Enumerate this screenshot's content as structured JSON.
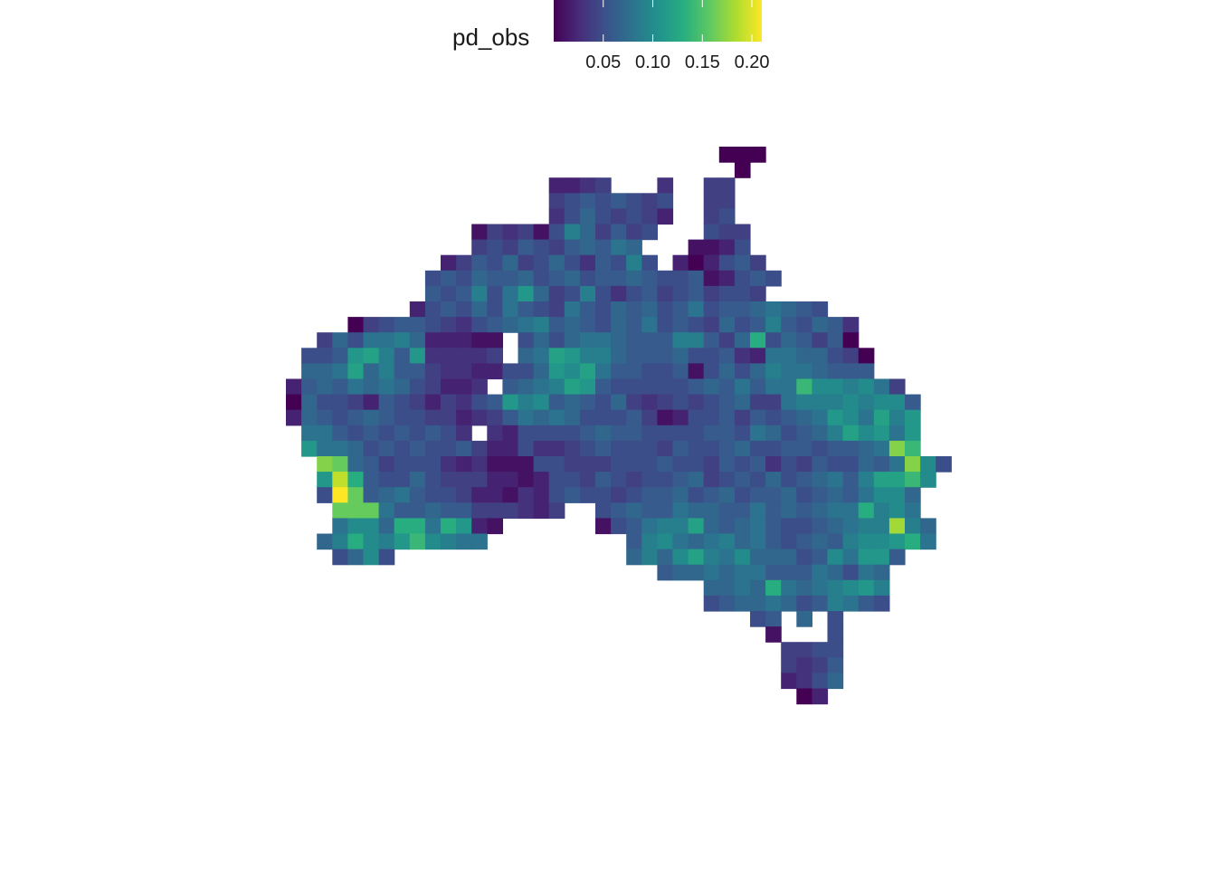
{
  "chart_data": {
    "type": "heatmap",
    "title": "",
    "xlabel": "",
    "ylabel": "",
    "legend": {
      "title": "pd_obs",
      "position": "top",
      "colormap": "viridis",
      "range": [
        0.0,
        0.21
      ],
      "ticks": [
        {
          "value": 0.05,
          "label": "0.05"
        },
        {
          "value": 0.1,
          "label": "0.10"
        },
        {
          "value": 0.15,
          "label": "0.15"
        },
        {
          "value": 0.2,
          "label": "0.20"
        }
      ]
    },
    "grid": {
      "columns": 42,
      "rows": 44,
      "description": "values listed row by row from top (north) to bottom (south); each row gives starting column and the pd_obs values of consecutive cells, null = empty"
    },
    "cells": [
      {
        "row": 0,
        "col": 28,
        "values": [
          0.0,
          0.0,
          0.0
        ]
      },
      {
        "row": 1,
        "col": 29,
        "values": [
          0.0
        ]
      },
      {
        "row": 2,
        "col": 17,
        "values": [
          0.02,
          0.02,
          0.03,
          0.04,
          null,
          null,
          null,
          0.03,
          null,
          null,
          0.04,
          0.04
        ]
      },
      {
        "row": 3,
        "col": 17,
        "values": [
          0.04,
          0.05,
          0.06,
          0.05,
          0.06,
          0.05,
          0.04,
          0.05,
          null,
          null,
          0.04,
          0.04
        ]
      },
      {
        "row": 4,
        "col": 17,
        "values": [
          0.03,
          0.05,
          0.07,
          0.05,
          0.04,
          0.05,
          0.04,
          0.02,
          null,
          null,
          0.04,
          0.05
        ]
      },
      {
        "row": 5,
        "col": 12,
        "values": [
          0.01,
          0.04,
          0.03,
          0.04,
          0.01,
          0.05,
          0.09,
          0.07,
          0.04,
          0.06,
          0.04,
          0.05,
          null,
          null,
          null,
          0.05,
          0.04,
          0.04
        ]
      },
      {
        "row": 6,
        "col": 12,
        "values": [
          0.04,
          0.05,
          0.04,
          0.06,
          0.05,
          0.04,
          0.06,
          0.07,
          0.06,
          0.08,
          0.07,
          null,
          null,
          null,
          0.01,
          0.01,
          0.02,
          0.05
        ]
      },
      {
        "row": 7,
        "col": 10,
        "values": [
          0.02,
          0.04,
          0.06,
          0.05,
          0.07,
          0.04,
          0.05,
          0.07,
          0.05,
          0.03,
          0.06,
          0.05,
          0.09,
          0.05,
          null,
          0.02,
          0.0,
          0.02,
          0.05,
          0.06,
          0.04
        ]
      },
      {
        "row": 8,
        "col": 9,
        "values": [
          0.05,
          0.06,
          0.05,
          0.07,
          0.06,
          0.06,
          0.07,
          0.05,
          0.06,
          0.07,
          0.05,
          0.06,
          0.06,
          0.07,
          0.06,
          0.05,
          0.05,
          0.06,
          0.01,
          0.02,
          0.05,
          0.06,
          0.05
        ]
      },
      {
        "row": 9,
        "col": 9,
        "values": [
          0.06,
          0.05,
          0.06,
          0.09,
          0.05,
          0.08,
          0.11,
          0.07,
          0.04,
          0.05,
          0.09,
          0.05,
          0.03,
          0.05,
          0.06,
          0.04,
          0.05,
          0.06,
          0.04,
          0.05,
          0.05,
          0.04
        ]
      },
      {
        "row": 10,
        "col": 8,
        "values": [
          0.02,
          0.05,
          0.06,
          0.05,
          0.07,
          0.05,
          0.08,
          0.06,
          0.05,
          0.04,
          0.08,
          0.06,
          0.05,
          0.07,
          0.06,
          0.07,
          0.05,
          0.06,
          0.08,
          0.05,
          0.06,
          0.06,
          0.07,
          0.08,
          0.07,
          0.06,
          0.05
        ]
      },
      {
        "row": 11,
        "col": 4,
        "values": [
          0.0,
          0.04,
          0.05,
          0.06,
          0.06,
          0.05,
          0.04,
          0.03,
          0.05,
          0.06,
          0.07,
          0.08,
          0.09,
          0.06,
          0.07,
          0.06,
          0.05,
          0.07,
          0.06,
          0.08,
          0.05,
          0.06,
          0.05,
          0.04,
          0.07,
          0.05,
          0.06,
          0.09,
          0.06,
          0.05,
          0.07,
          0.06,
          0.03
        ]
      },
      {
        "row": 12,
        "col": 2,
        "values": [
          0.04,
          0.07,
          0.05,
          0.08,
          0.08,
          0.09,
          0.07,
          0.02,
          0.02,
          0.02,
          0.01,
          0.01,
          null,
          0.05,
          0.07,
          0.05,
          0.07,
          0.08,
          0.08,
          0.07,
          0.06,
          0.06,
          0.06,
          0.09,
          0.09,
          0.06,
          0.04,
          0.07,
          0.13,
          0.05,
          0.07,
          0.06,
          0.04,
          0.06,
          0.0
        ]
      },
      {
        "row": 13,
        "col": 1,
        "values": [
          0.05,
          0.05,
          0.06,
          0.11,
          0.12,
          0.09,
          0.06,
          0.11,
          0.03,
          0.03,
          0.03,
          0.03,
          0.04,
          null,
          0.07,
          0.08,
          0.12,
          0.11,
          0.09,
          0.09,
          0.07,
          0.06,
          0.06,
          0.06,
          0.07,
          0.05,
          0.05,
          0.06,
          0.03,
          0.02,
          0.08,
          0.08,
          0.07,
          0.07,
          0.05,
          0.04,
          0.0
        ]
      },
      {
        "row": 14,
        "col": 1,
        "values": [
          0.07,
          0.07,
          0.08,
          0.12,
          0.07,
          0.09,
          0.06,
          0.06,
          0.04,
          0.03,
          0.03,
          0.02,
          0.02,
          0.05,
          0.05,
          0.07,
          0.11,
          0.1,
          0.12,
          0.08,
          0.06,
          0.06,
          0.05,
          0.05,
          0.06,
          0.01,
          0.05,
          0.07,
          0.05,
          0.07,
          0.09,
          0.08,
          0.08,
          0.07,
          0.06,
          0.06,
          0.06
        ]
      },
      {
        "row": 15,
        "col": 0,
        "values": [
          0.02,
          0.06,
          0.07,
          0.06,
          0.08,
          0.07,
          0.08,
          0.07,
          0.05,
          0.04,
          0.02,
          0.02,
          0.03,
          null,
          0.06,
          0.07,
          0.08,
          0.09,
          0.12,
          0.11,
          0.06,
          0.05,
          0.05,
          0.05,
          0.05,
          0.05,
          0.06,
          0.07,
          0.06,
          0.08,
          0.06,
          0.08,
          0.08,
          0.14,
          0.1,
          0.1,
          0.09,
          0.1,
          0.08,
          0.04
        ]
      },
      {
        "row": 16,
        "col": 0,
        "values": [
          0.0,
          0.07,
          0.05,
          0.05,
          0.04,
          0.02,
          0.06,
          0.05,
          0.04,
          0.02,
          0.04,
          0.03,
          0.05,
          0.06,
          0.11,
          0.09,
          0.1,
          0.06,
          0.07,
          0.06,
          0.05,
          0.07,
          0.04,
          0.03,
          0.04,
          0.05,
          0.04,
          0.05,
          0.06,
          0.07,
          0.04,
          0.04,
          0.08,
          0.09,
          0.09,
          0.09,
          0.1,
          0.09,
          0.1,
          0.1,
          0.06
        ]
      },
      {
        "row": 17,
        "col": 0,
        "values": [
          0.02,
          0.07,
          0.06,
          0.05,
          0.06,
          0.07,
          0.06,
          0.05,
          0.05,
          0.04,
          0.04,
          0.02,
          0.03,
          0.04,
          0.06,
          0.08,
          0.07,
          0.08,
          0.07,
          0.05,
          0.05,
          0.05,
          0.06,
          0.04,
          0.01,
          0.02,
          0.05,
          0.05,
          0.06,
          0.04,
          0.06,
          0.05,
          0.06,
          0.07,
          0.08,
          0.11,
          0.1,
          0.08,
          0.12,
          0.09,
          0.11
        ]
      },
      {
        "row": 18,
        "col": 1,
        "values": [
          0.08,
          0.08,
          0.06,
          0.05,
          0.06,
          0.05,
          0.06,
          0.05,
          0.06,
          0.05,
          0.03,
          null,
          0.03,
          0.02,
          0.05,
          0.05,
          0.05,
          0.05,
          0.06,
          0.07,
          0.06,
          0.06,
          0.05,
          0.05,
          0.05,
          0.05,
          0.06,
          0.06,
          0.05,
          0.08,
          0.07,
          0.05,
          0.06,
          0.07,
          0.09,
          0.12,
          0.1,
          0.11,
          0.08,
          0.11
        ]
      },
      {
        "row": 19,
        "col": 1,
        "values": [
          0.11,
          0.08,
          0.08,
          0.07,
          0.05,
          0.06,
          0.05,
          0.06,
          0.05,
          0.05,
          0.06,
          0.04,
          0.02,
          0.02,
          0.05,
          0.03,
          0.03,
          0.04,
          0.05,
          0.06,
          0.05,
          0.05,
          0.05,
          0.04,
          0.06,
          0.05,
          0.05,
          0.06,
          0.07,
          0.05,
          0.05,
          0.06,
          0.06,
          0.05,
          0.06,
          0.06,
          0.07,
          0.08,
          0.17,
          0.14
        ]
      },
      {
        "row": 20,
        "col": 2,
        "values": [
          0.17,
          0.16,
          0.07,
          0.06,
          0.04,
          0.05,
          0.05,
          0.05,
          0.03,
          0.02,
          0.03,
          0.01,
          0.01,
          0.01,
          0.05,
          0.05,
          0.04,
          0.04,
          0.04,
          0.05,
          0.05,
          0.05,
          0.06,
          0.05,
          0.05,
          0.04,
          0.06,
          0.05,
          0.06,
          0.03,
          0.05,
          0.04,
          0.06,
          0.05,
          0.05,
          0.07,
          0.06,
          0.08,
          0.17,
          0.1,
          0.05
        ]
      },
      {
        "row": 21,
        "col": 2,
        "values": [
          0.11,
          0.19,
          0.13,
          0.06,
          0.05,
          0.05,
          0.07,
          0.05,
          0.04,
          0.04,
          0.04,
          0.02,
          0.02,
          0.01,
          0.02,
          0.05,
          0.05,
          0.04,
          0.06,
          0.05,
          0.04,
          0.05,
          0.05,
          0.06,
          0.07,
          0.04,
          0.05,
          0.06,
          0.05,
          0.07,
          0.05,
          0.06,
          0.07,
          0.08,
          0.06,
          0.09,
          0.12,
          0.12,
          0.14,
          0.1
        ]
      },
      {
        "row": 22,
        "col": 2,
        "values": [
          0.05,
          0.21,
          0.16,
          0.06,
          0.07,
          0.08,
          0.06,
          0.05,
          0.05,
          0.04,
          0.02,
          0.02,
          0.01,
          0.03,
          0.02,
          0.05,
          0.06,
          0.05,
          0.05,
          0.04,
          0.05,
          0.06,
          0.06,
          0.07,
          0.05,
          0.06,
          0.07,
          0.05,
          0.06,
          0.06,
          0.07,
          0.05,
          0.06,
          0.07,
          0.06,
          0.08,
          0.1,
          0.1,
          0.07
        ]
      },
      {
        "row": 23,
        "col": 3,
        "values": [
          0.16,
          0.16,
          0.16,
          0.08,
          0.06,
          0.06,
          0.07,
          0.06,
          0.06,
          0.04,
          0.04,
          0.04,
          0.03,
          0.02,
          0.04,
          null,
          null,
          0.05,
          0.06,
          0.07,
          0.06,
          0.06,
          0.08,
          0.07,
          0.07,
          0.06,
          0.06,
          0.08,
          0.06,
          0.07,
          0.06,
          0.07,
          0.08,
          0.08,
          0.13,
          0.09,
          0.1,
          0.08
        ]
      },
      {
        "row": 24,
        "col": 3,
        "values": [
          0.08,
          0.1,
          0.1,
          0.07,
          0.13,
          0.13,
          0.08,
          0.13,
          0.11,
          0.02,
          0.01,
          null,
          null,
          null,
          null,
          null,
          null,
          0.01,
          0.05,
          0.06,
          0.08,
          0.09,
          0.09,
          0.12,
          0.07,
          0.06,
          0.07,
          0.08,
          0.06,
          0.05,
          0.05,
          0.06,
          0.07,
          0.08,
          0.09,
          0.09,
          0.18,
          0.09,
          0.07
        ]
      },
      {
        "row": 25,
        "col": 2,
        "values": [
          0.07,
          0.09,
          0.13,
          0.1,
          0.09,
          0.11,
          0.14,
          0.1,
          0.09,
          0.08,
          0.08,
          null,
          null,
          null,
          null,
          null,
          null,
          null,
          null,
          null,
          0.06,
          0.09,
          0.1,
          0.08,
          0.07,
          0.08,
          0.09,
          0.07,
          0.08,
          0.06,
          0.05,
          0.06,
          0.07,
          0.06,
          0.09,
          0.1,
          0.1,
          0.11,
          0.13,
          0.08
        ]
      },
      {
        "row": 26,
        "col": 3,
        "values": [
          0.05,
          0.07,
          0.1,
          0.05
        ]
      },
      {
        "row": 26,
        "col": 22,
        "values": [
          0.07,
          0.09,
          0.07,
          0.1,
          0.12,
          0.09,
          0.08,
          0.1,
          0.07,
          0.07,
          0.07,
          0.05,
          0.06,
          0.1,
          0.08,
          0.11,
          0.11,
          0.06
        ]
      },
      {
        "row": 27,
        "col": 24,
        "values": [
          0.06,
          0.07,
          0.07,
          0.08,
          0.07,
          0.08,
          0.08,
          0.06,
          0.06,
          0.06,
          0.08,
          0.07,
          0.05,
          0.08,
          0.07
        ]
      },
      {
        "row": 28,
        "col": 27,
        "values": [
          0.07,
          0.07,
          0.08,
          0.07,
          0.13,
          0.08,
          0.07,
          0.08,
          0.09,
          0.1,
          0.11,
          0.09
        ]
      },
      {
        "row": 29,
        "col": 27,
        "values": [
          0.05,
          0.06,
          0.07,
          0.07,
          0.08,
          0.07,
          0.05,
          0.06,
          0.09,
          0.08,
          0.06,
          0.05
        ]
      },
      {
        "row": 30,
        "col": 30,
        "values": [
          0.05,
          0.06,
          null,
          0.07,
          null,
          0.05
        ]
      },
      {
        "row": 31,
        "col": 31,
        "values": [
          0.01,
          null,
          null,
          null,
          0.05
        ]
      },
      {
        "row": 32,
        "col": 32,
        "values": [
          0.04,
          0.04,
          0.05,
          0.05
        ]
      },
      {
        "row": 33,
        "col": 32,
        "values": [
          0.04,
          0.03,
          0.04,
          0.06
        ]
      },
      {
        "row": 34,
        "col": 32,
        "values": [
          0.02,
          0.03,
          0.05,
          0.07
        ]
      },
      {
        "row": 35,
        "col": 33,
        "values": [
          0.0,
          0.02
        ]
      }
    ]
  }
}
